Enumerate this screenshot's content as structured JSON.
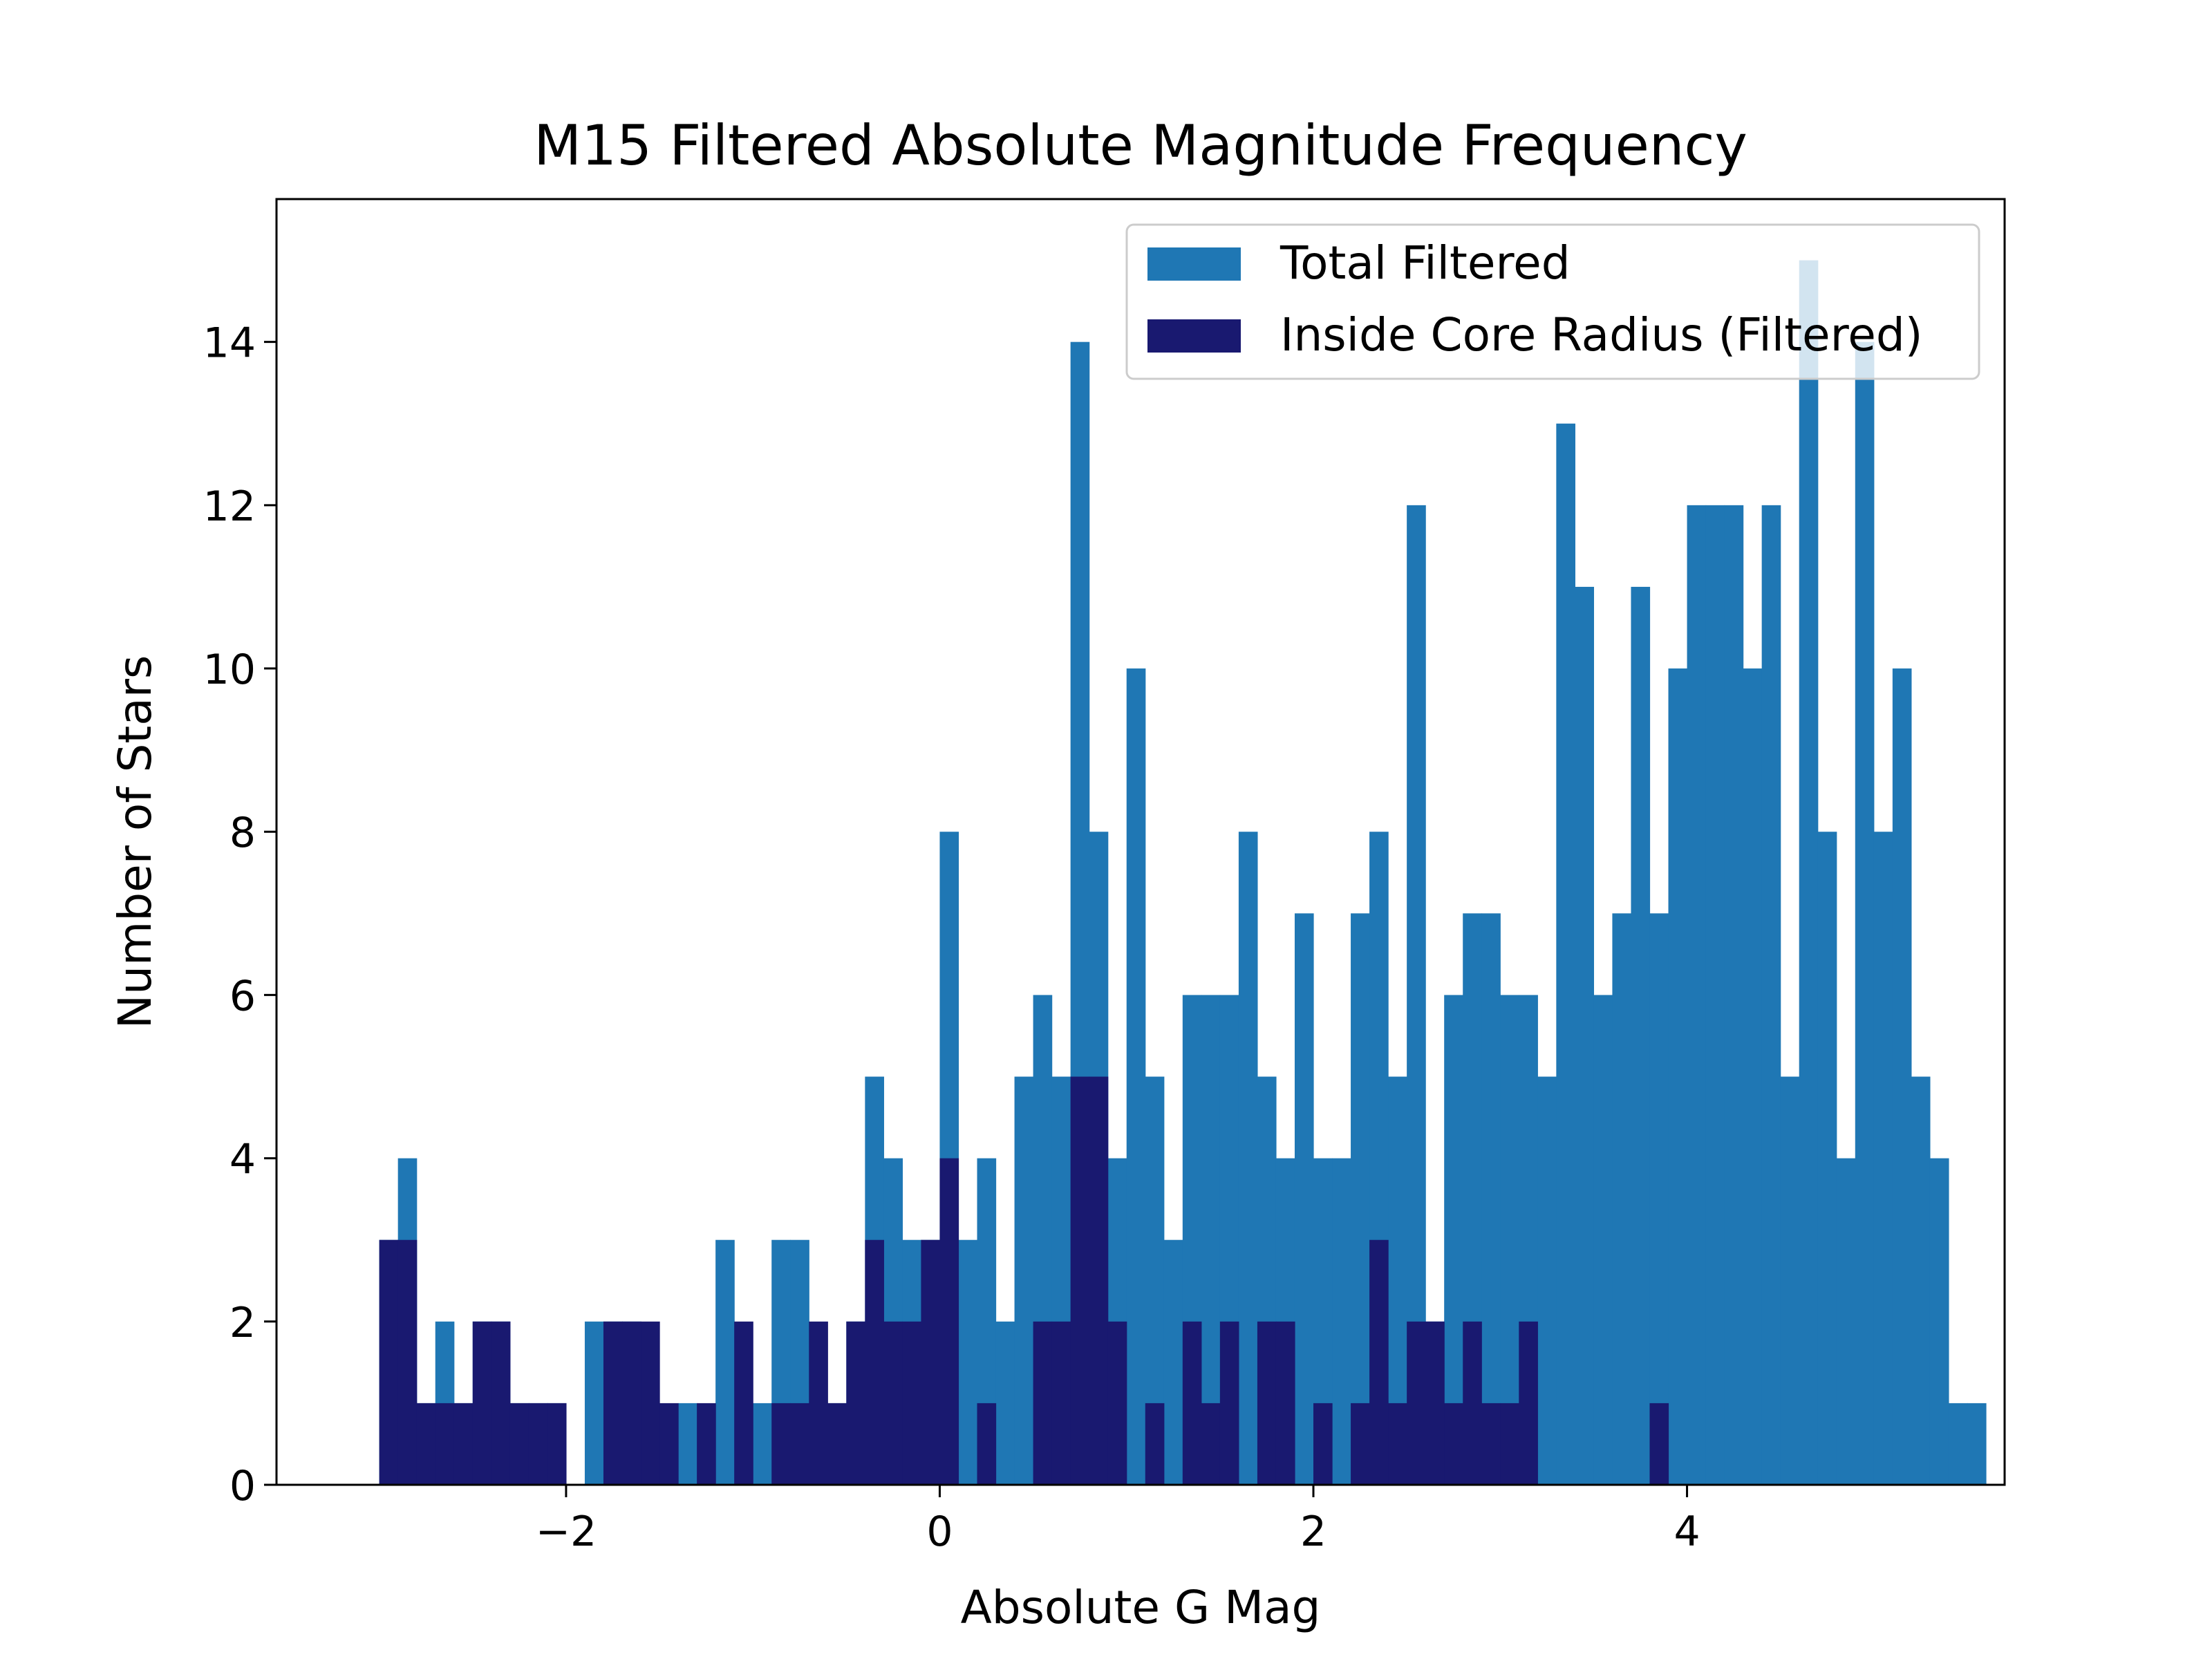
{
  "chart_data": {
    "type": "bar",
    "title": "M15 Filtered Absolute Magnitude Frequency",
    "xlabel": "Absolute G Mag",
    "ylabel": "Number of Stars",
    "xlim": [
      -3.55,
      5.7
    ],
    "ylim": [
      0,
      15.75
    ],
    "bins": {
      "start": -3.0,
      "width": 0.1
    },
    "xticks": [
      {
        "value": -2,
        "label": "−2"
      },
      {
        "value": 0,
        "label": "0"
      },
      {
        "value": 2,
        "label": "2"
      },
      {
        "value": 4,
        "label": "4"
      }
    ],
    "yticks": [
      {
        "value": 0,
        "label": "0"
      },
      {
        "value": 2,
        "label": "2"
      },
      {
        "value": 4,
        "label": "4"
      },
      {
        "value": 6,
        "label": "6"
      },
      {
        "value": 8,
        "label": "8"
      },
      {
        "value": 10,
        "label": "10"
      },
      {
        "value": 12,
        "label": "12"
      },
      {
        "value": 14,
        "label": "14"
      }
    ],
    "grid": false,
    "legend_position": "top-right",
    "series": [
      {
        "name": "Total Filtered",
        "color": "#1f77b4",
        "values": [
          3,
          4,
          1,
          2,
          1,
          2,
          2,
          1,
          1,
          1,
          0,
          2,
          2,
          2,
          1,
          0,
          1,
          0,
          3,
          0,
          1,
          3,
          3,
          1,
          1,
          2,
          5,
          4,
          3,
          3,
          8,
          3,
          4,
          2,
          5,
          6,
          5,
          14,
          8,
          4,
          10,
          5,
          3,
          6,
          6,
          6,
          8,
          5,
          4,
          7,
          4,
          4,
          7,
          8,
          5,
          12,
          2,
          6,
          7,
          7,
          6,
          6,
          5,
          13,
          11,
          6,
          7,
          11,
          7,
          10,
          12,
          12,
          12,
          10,
          12,
          5,
          15,
          8,
          4,
          14,
          8,
          10,
          5,
          4,
          1,
          1
        ]
      },
      {
        "name": "Inside Core Radius (Filtered)",
        "color": "#191970",
        "values": [
          3,
          3,
          1,
          1,
          1,
          2,
          2,
          1,
          1,
          1,
          0,
          0,
          2,
          2,
          2,
          1,
          0,
          1,
          0,
          2,
          0,
          1,
          1,
          2,
          1,
          2,
          3,
          2,
          2,
          3,
          4,
          0,
          1,
          0,
          0,
          2,
          2,
          5,
          5,
          2,
          0,
          1,
          0,
          2,
          1,
          2,
          0,
          2,
          2,
          0,
          1,
          0,
          1,
          3,
          1,
          2,
          2,
          1,
          2,
          1,
          1,
          2,
          0,
          0,
          0,
          0,
          0,
          0,
          1,
          0,
          0,
          0,
          0,
          0,
          0,
          0,
          0,
          0,
          0,
          0,
          0,
          0,
          0,
          0,
          0,
          0
        ]
      }
    ]
  }
}
